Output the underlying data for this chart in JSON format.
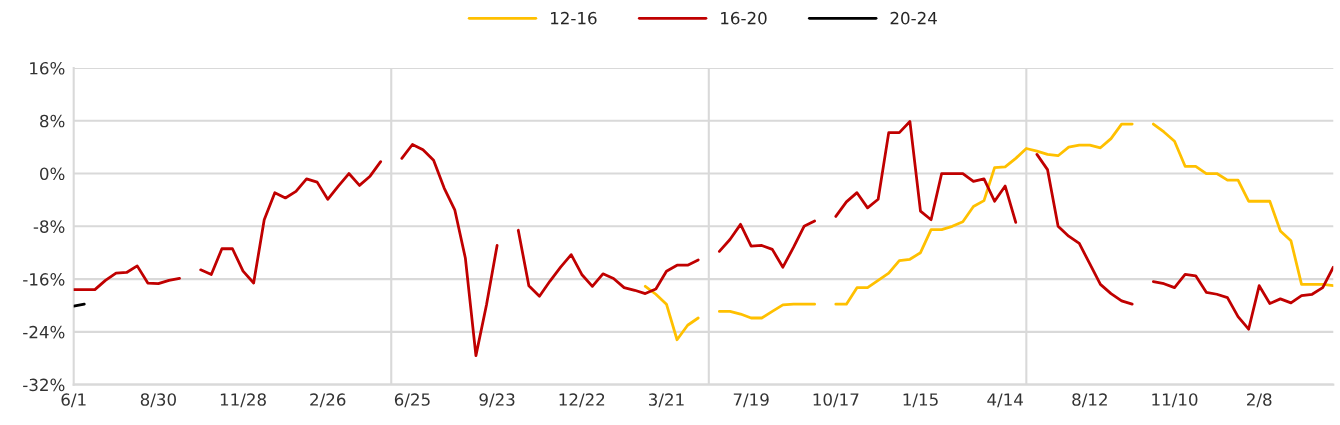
{
  "chart_data": {
    "type": "line",
    "legend": "top",
    "grid": "y",
    "line_style": "solid",
    "marker": "none",
    "categories": [
      "6/1",
      null,
      null,
      null,
      null,
      null,
      null,
      null,
      "8/30",
      null,
      null,
      null,
      null,
      null,
      null,
      null,
      "11/28",
      null,
      null,
      null,
      null,
      null,
      null,
      null,
      "2/26",
      null,
      null,
      null,
      null,
      null,
      null,
      null,
      "6/25",
      null,
      null,
      null,
      null,
      null,
      null,
      null,
      "9/23",
      null,
      null,
      null,
      null,
      null,
      null,
      null,
      "12/22",
      null,
      null,
      null,
      null,
      null,
      null,
      null,
      "3/21",
      null,
      null,
      null,
      null,
      null,
      null,
      null,
      "7/19",
      null,
      null,
      null,
      null,
      null,
      null,
      null,
      "10/17",
      null,
      null,
      null,
      null,
      null,
      null,
      null,
      "1/15",
      null,
      null,
      null,
      null,
      null,
      null,
      null,
      "4/14",
      null,
      null,
      null,
      null,
      null,
      null,
      null,
      "8/12",
      null,
      null,
      null,
      null,
      null,
      null,
      null,
      "11/10",
      null,
      null,
      null,
      null,
      null,
      null,
      null,
      "2/8",
      null,
      null,
      null,
      null,
      null,
      null,
      null
    ],
    "ylim": [
      -32,
      16
    ],
    "yticks": [
      {
        "value": -32,
        "label": "-32%"
      },
      {
        "value": -24,
        "label": "-24%"
      },
      {
        "value": -16,
        "label": "-16%"
      },
      {
        "value": -8,
        "label": "-8%"
      },
      {
        "value": 0,
        "label": "0%"
      },
      {
        "value": 8,
        "label": "8%"
      },
      {
        "value": 16,
        "label": "16%"
      }
    ],
    "series": [
      {
        "name": "12-16",
        "color": "#ffc000",
        "values": [
          null,
          null,
          null,
          null,
          null,
          null,
          null,
          null,
          null,
          null,
          null,
          null,
          null,
          null,
          null,
          null,
          null,
          null,
          null,
          null,
          null,
          null,
          null,
          null,
          null,
          null,
          null,
          null,
          null,
          null,
          null,
          null,
          null,
          null,
          null,
          null,
          null,
          null,
          null,
          null,
          null,
          null,
          null,
          null,
          null,
          null,
          null,
          null,
          null,
          null,
          null,
          null,
          null,
          null,
          -17.1,
          -18.3,
          -19.8,
          -25.2,
          -23.0,
          -21.9,
          null,
          -20.9,
          -20.9,
          -21.3,
          -21.9,
          -21.9,
          -20.9,
          -19.9,
          -19.8,
          -19.8,
          -19.8,
          null,
          -19.8,
          -19.8,
          -17.3,
          -17.3,
          -16.2,
          -15.1,
          -13.2,
          -13.0,
          -12.0,
          -8.5,
          -8.5,
          -8.0,
          -7.3,
          -5.0,
          -4.1,
          0.9,
          1.0,
          2.3,
          3.8,
          3.4,
          2.9,
          2.7,
          4.0,
          4.3,
          4.3,
          3.9,
          5.3,
          7.5,
          7.5,
          null,
          7.5,
          6.3,
          4.9,
          1.1,
          1.1,
          0,
          0,
          -1.0,
          -1.0,
          -4.2,
          -4.2,
          -4.2,
          -8.7,
          -10.2,
          -16.8,
          -16.8,
          -16.8,
          -17.0
        ]
      },
      {
        "name": "16-20",
        "color": "#c00000",
        "values": [
          -17.6,
          -17.6,
          -17.6,
          -16.2,
          -15.1,
          -15.0,
          -14.0,
          -16.6,
          -16.7,
          -16.2,
          -15.9,
          null,
          -14.6,
          -15.3,
          -11.4,
          -11.4,
          -14.8,
          -16.6,
          -7.0,
          -2.9,
          -3.7,
          -2.7,
          -0.8,
          -1.3,
          -3.9,
          -1.9,
          0,
          -1.8,
          -0.4,
          1.8,
          null,
          2.3,
          4.4,
          3.6,
          2.0,
          -2.2,
          -5.5,
          -12.8,
          -27.6,
          -19.9,
          -10.9,
          null,
          -8.6,
          -17.0,
          -18.6,
          -16.3,
          -14.2,
          -12.3,
          -15.3,
          -17.1,
          -15.2,
          -15.9,
          -17.3,
          -17.7,
          -18.2,
          -17.5,
          -14.8,
          -13.9,
          -13.9,
          -13.1,
          null,
          -11.8,
          -10.0,
          -7.7,
          -11.0,
          -10.9,
          -11.5,
          -14.2,
          -11.2,
          -8.0,
          -7.2,
          null,
          -6.5,
          -4.3,
          -2.9,
          -5.2,
          -3.9,
          6.2,
          6.2,
          7.9,
          -5.7,
          -7.0,
          0,
          0,
          0,
          -1.2,
          -0.8,
          -4.2,
          -1.9,
          -7.4,
          null,
          2.9,
          0.6,
          -8.0,
          -9.5,
          -10.6,
          -13.7,
          -16.8,
          -18.2,
          -19.3,
          -19.8,
          null,
          -16.4,
          -16.7,
          -17.3,
          -15.3,
          -15.5,
          -18.0,
          -18.3,
          -18.8,
          -21.7,
          -23.6,
          -17.0,
          -19.7,
          -19.0,
          -19.6,
          -18.5,
          -18.3,
          -17.3,
          -14.2
        ]
      },
      {
        "name": "20-24",
        "color": "#000000",
        "values": [
          -20.1,
          -19.8,
          null,
          null,
          null,
          null,
          null,
          null,
          null,
          null,
          null,
          null,
          null,
          null,
          null,
          null,
          null,
          null,
          null,
          null,
          null,
          null,
          null,
          null,
          null,
          null,
          null,
          null,
          null,
          null,
          null,
          null,
          null,
          null,
          null,
          null,
          null,
          null,
          null,
          null,
          null,
          null,
          null,
          null,
          null,
          null,
          null,
          null,
          null,
          null,
          null,
          null,
          null,
          null,
          null,
          null,
          null,
          null,
          null,
          null,
          null,
          null,
          null,
          null,
          null,
          null,
          null,
          null,
          null,
          null,
          null,
          null,
          null,
          null,
          null,
          null,
          null,
          null,
          null,
          null,
          null,
          null,
          null,
          null,
          null,
          null,
          null,
          null,
          null,
          null,
          null,
          null,
          null,
          null,
          null,
          null,
          null,
          null,
          null,
          null,
          null,
          null,
          null,
          null,
          null,
          null,
          null,
          null,
          null,
          null,
          null,
          null,
          null,
          null,
          null,
          null,
          null,
          null,
          null,
          null
        ]
      }
    ]
  }
}
